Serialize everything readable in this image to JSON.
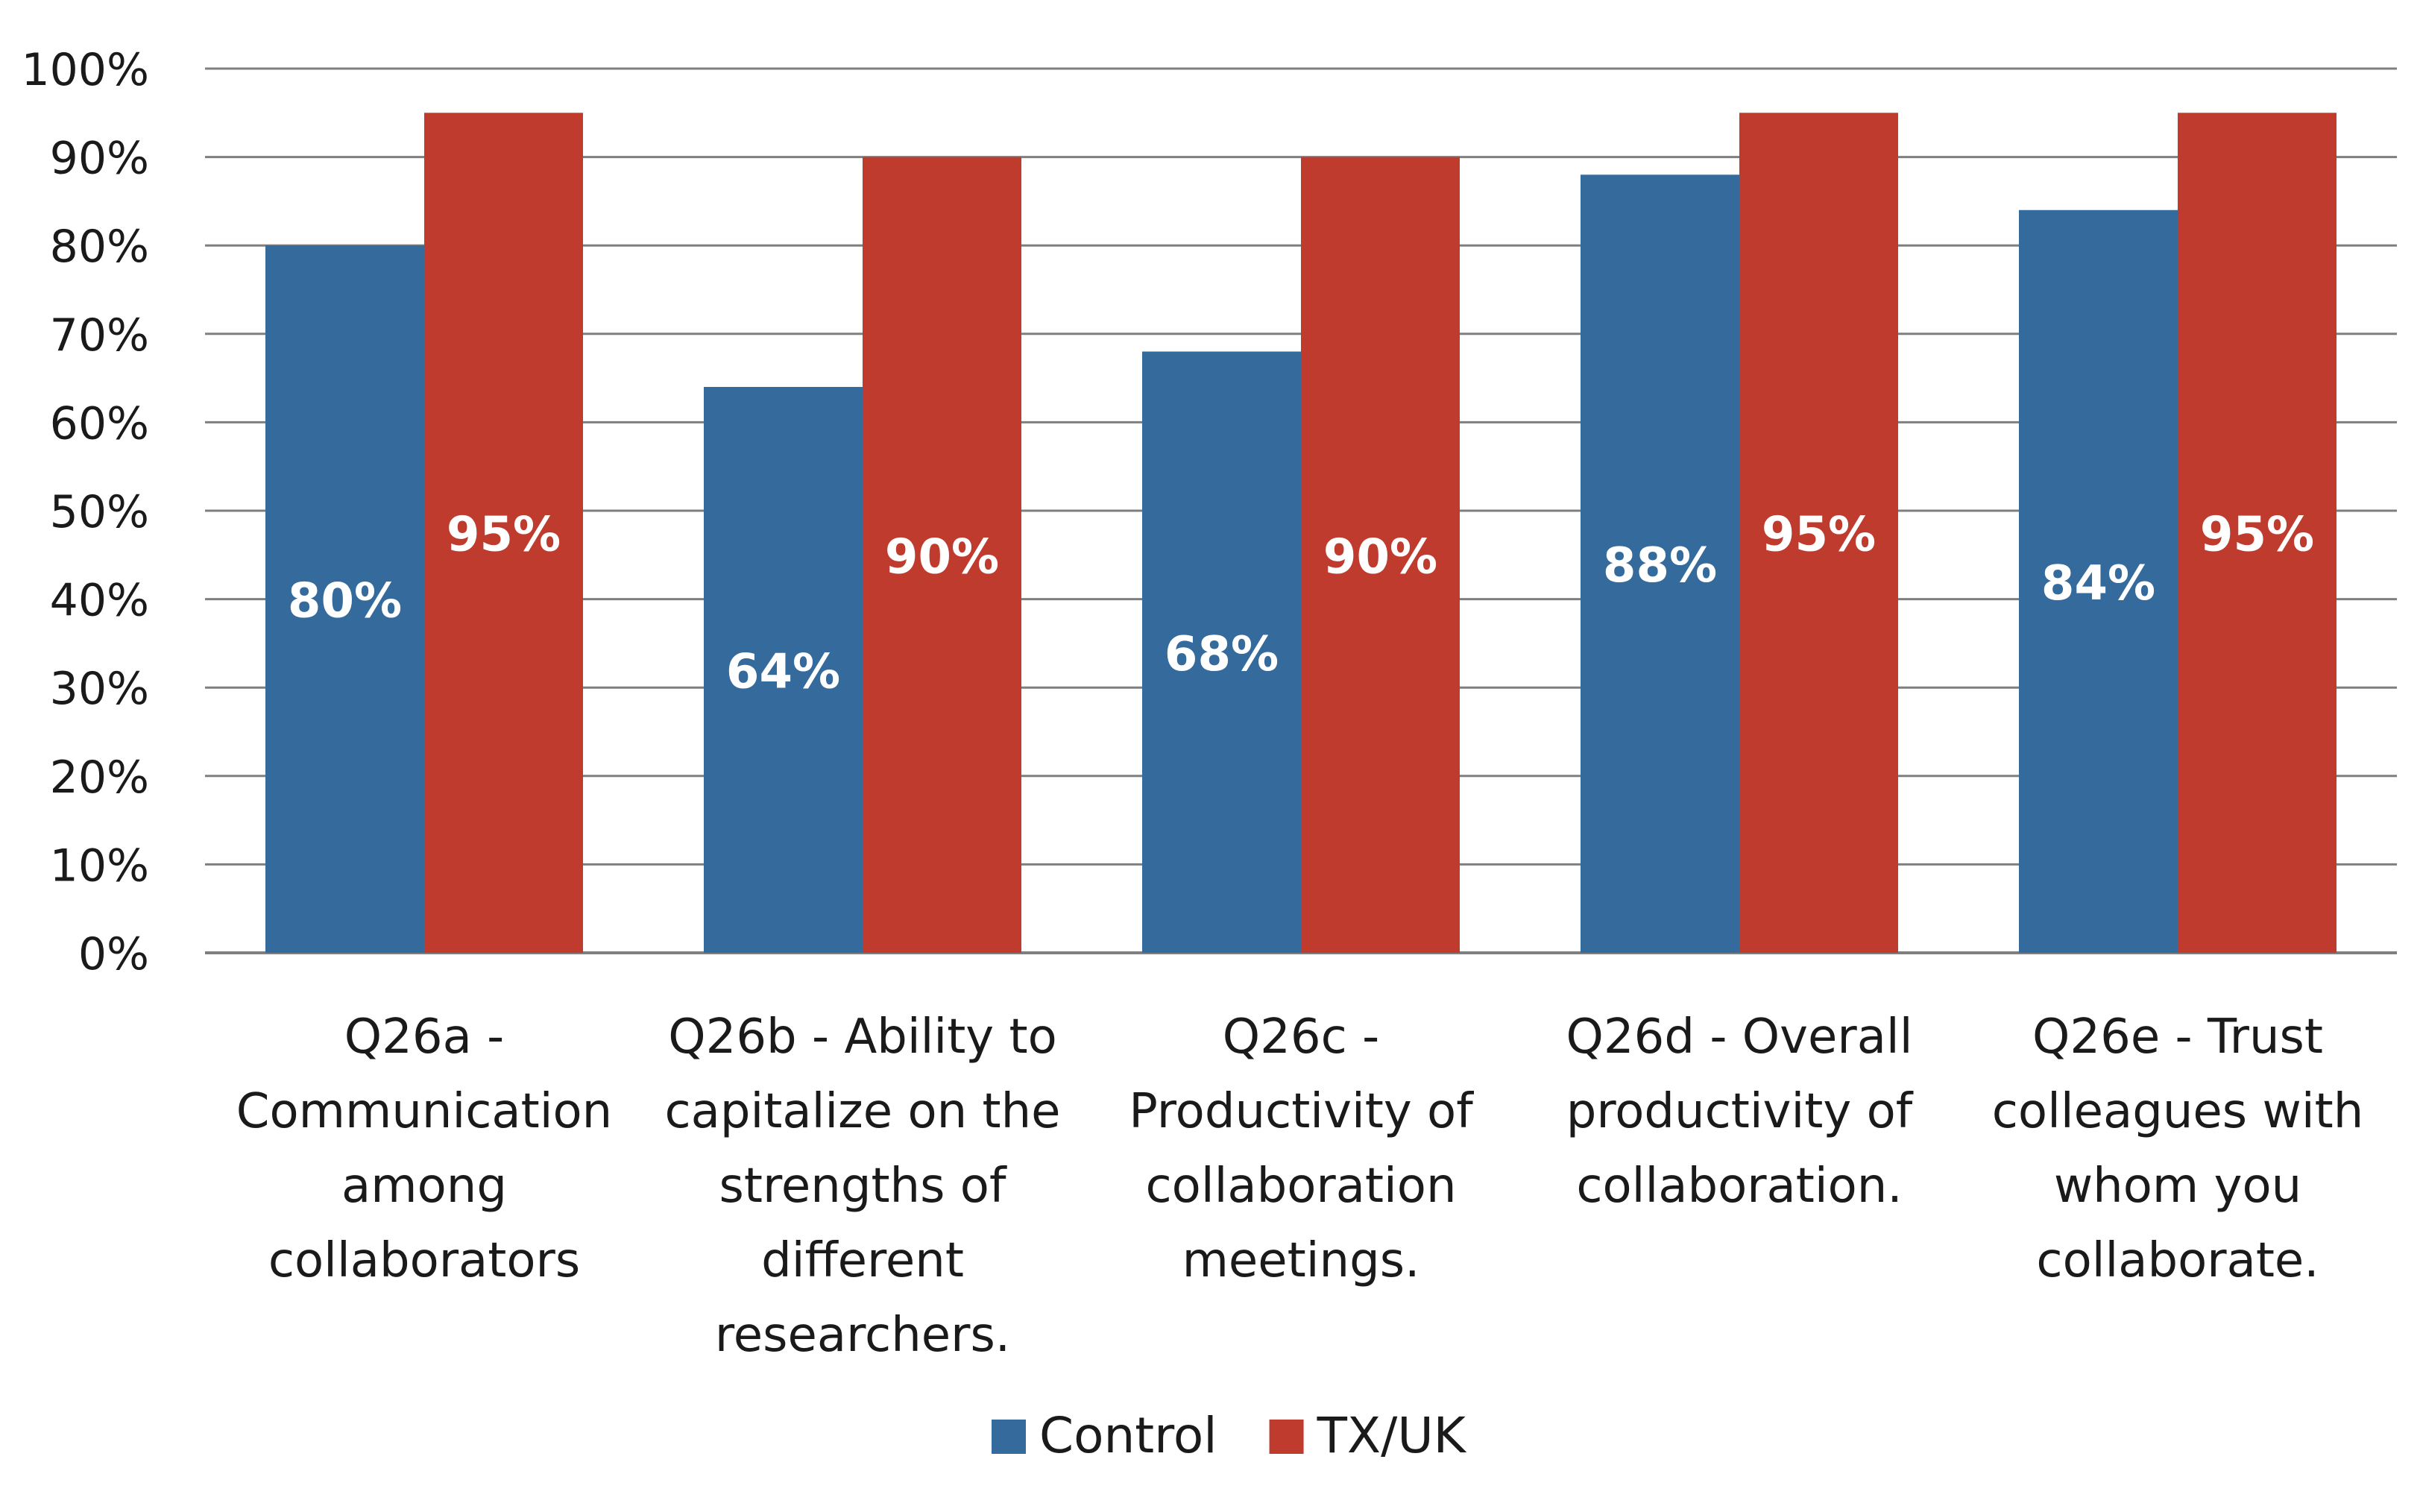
{
  "chart_data": {
    "type": "bar",
    "categories": [
      [
        "Q26a -",
        "Communication",
        "among",
        "collaborators"
      ],
      [
        "Q26b - Ability to",
        "capitalize on the",
        "strengths of",
        "different",
        "researchers."
      ],
      [
        "Q26c -",
        "Productivity of",
        "collaboration",
        "meetings."
      ],
      [
        "Q26d - Overall",
        "productivity of",
        "collaboration."
      ],
      [
        "Q26e - Trust",
        "colleagues with",
        "whom you",
        "collaborate."
      ]
    ],
    "series": [
      {
        "name": "Control",
        "color": "#356a9c",
        "values": [
          80,
          64,
          68,
          88,
          84
        ],
        "labels": [
          "80%",
          "64%",
          "68%",
          "88%",
          "84%"
        ]
      },
      {
        "name": "TX/UK",
        "color": "#be3b2e",
        "values": [
          95,
          90,
          90,
          95,
          95
        ],
        "labels": [
          "95%",
          "90%",
          "90%",
          "95%",
          "95%"
        ]
      }
    ],
    "y_ticks": [
      "0%",
      "10%",
      "20%",
      "30%",
      "40%",
      "50%",
      "60%",
      "70%",
      "80%",
      "90%",
      "100%"
    ],
    "ylim": [
      0,
      100
    ],
    "grid": true,
    "legend_position": "bottom-center"
  }
}
